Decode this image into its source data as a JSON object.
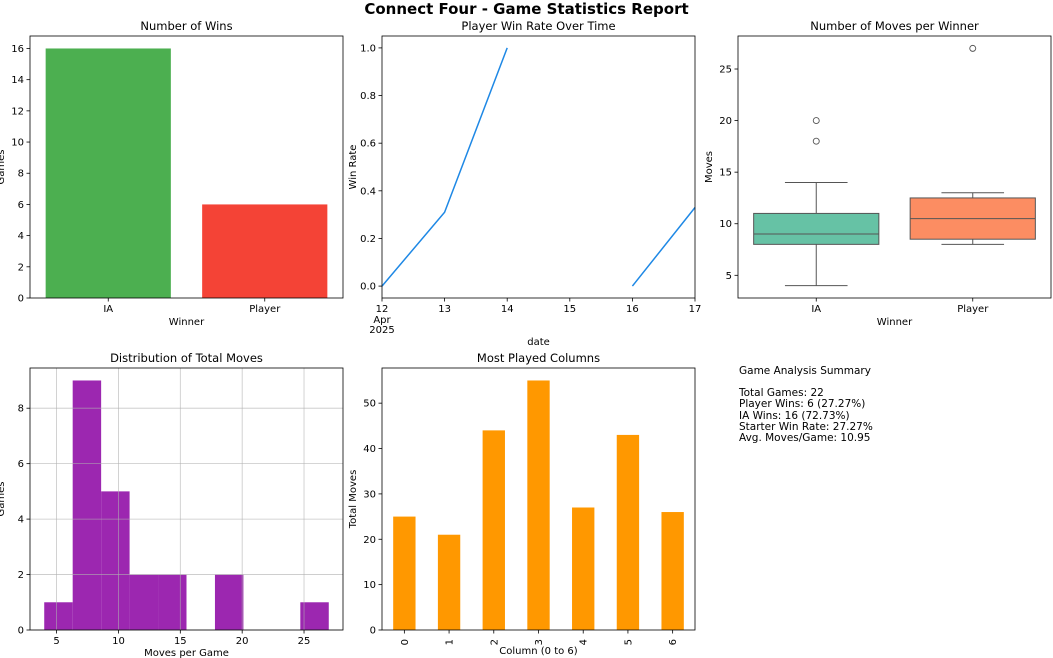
{
  "title": "Connect Four - Game Statistics Report",
  "chart_data": [
    {
      "type": "bar",
      "title": "Number of Wins",
      "xlabel": "Winner",
      "ylabel": "Games",
      "categories": [
        "IA",
        "Player"
      ],
      "values": [
        16,
        6
      ],
      "colors": [
        "#4caf50",
        "#f44336"
      ],
      "ylim": [
        0,
        16.8
      ],
      "yticks": [
        0,
        2,
        4,
        6,
        8,
        10,
        12,
        14,
        16
      ],
      "grid": false
    },
    {
      "type": "line",
      "title": "Player Win Rate Over Time",
      "xlabel": "date",
      "ylabel": "Win Rate",
      "color": "#1e88e5",
      "series": [
        {
          "points": [
            [
              "2025-04-12",
              0.0
            ],
            [
              "2025-04-13",
              0.31
            ],
            [
              "2025-04-14",
              1.0
            ]
          ]
        },
        {
          "points": [
            [
              "2025-04-16",
              0.0
            ],
            [
              "2025-04-17",
              0.33
            ]
          ]
        }
      ],
      "xlim": [
        "2025-04-12",
        "2025-04-17"
      ],
      "xtick_labels": [
        "12",
        "13",
        "14",
        "15",
        "16",
        "17"
      ],
      "xtick_sublabel": "Apr",
      "xtick_year": "2025",
      "ylim": [
        -0.05,
        1.05
      ],
      "yticks": [
        "0.0",
        "0.2",
        "0.4",
        "0.6",
        "0.8",
        "1.0"
      ],
      "grid": false
    },
    {
      "type": "box",
      "title": "Number of Moves per Winner",
      "xlabel": "Winner",
      "ylabel": "Moves",
      "categories": [
        "IA",
        "Player"
      ],
      "boxes": [
        {
          "whislo": 4,
          "q1": 8,
          "med": 9,
          "q3": 11,
          "whishi": 14,
          "fliers": [
            18,
            20
          ],
          "color": "#66c2a5"
        },
        {
          "whislo": 8,
          "q1": 8.5,
          "med": 10.5,
          "q3": 12.5,
          "whishi": 13,
          "fliers": [
            27
          ],
          "color": "#fc8d62"
        }
      ],
      "ylim": [
        2.8,
        28.2
      ],
      "yticks": [
        5,
        10,
        15,
        20,
        25
      ],
      "grid": false
    },
    {
      "type": "histogram",
      "title": "Distribution of Total Moves",
      "xlabel": "Moves per Game",
      "ylabel": "Games",
      "color": "#9c27b0",
      "bins": [
        4,
        6.3,
        8.6,
        10.9,
        13.2,
        15.5,
        17.8,
        20.1,
        22.4,
        24.7,
        27
      ],
      "counts": [
        1,
        9,
        5,
        2,
        2,
        0,
        2,
        0,
        0,
        1
      ],
      "xlim": [
        2.85,
        28.15
      ],
      "xticks": [
        5,
        10,
        15,
        20,
        25
      ],
      "ylim": [
        0,
        9.45
      ],
      "yticks": [
        0,
        2,
        4,
        6,
        8
      ],
      "grid": true
    },
    {
      "type": "bar",
      "title": "Most Played Columns",
      "xlabel": "Column (0 to 6)",
      "ylabel": "Total Moves",
      "categories": [
        "0",
        "1",
        "2",
        "3",
        "4",
        "5",
        "6"
      ],
      "values": [
        25,
        21,
        44,
        55,
        27,
        43,
        26
      ],
      "color": "#ff9800",
      "ylim": [
        0,
        57.75
      ],
      "yticks": [
        0,
        10,
        20,
        30,
        40,
        50
      ],
      "grid": false
    }
  ],
  "summary": {
    "title": "Game Analysis Summary",
    "lines": [
      "Total Games: 22",
      "Player Wins: 6 (27.27%)",
      "IA Wins: 16 (72.73%)",
      "Starter Win Rate: 27.27%",
      "Avg. Moves/Game: 10.95"
    ]
  }
}
